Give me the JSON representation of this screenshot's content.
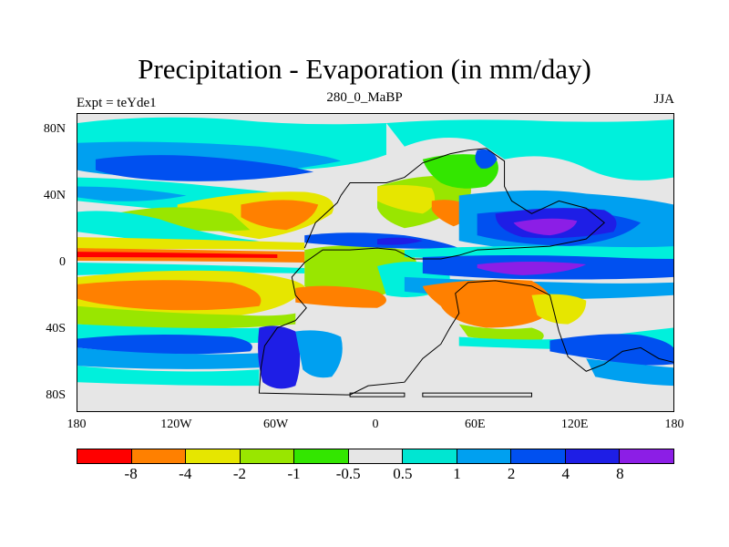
{
  "title": "Precipitation - Evaporation (in mm/day)",
  "left_label": "Expt = teYde1",
  "center_label": "280_0_MaBP",
  "right_label": "JJA",
  "lat_labels": [
    {
      "text": "80N",
      "lat": 80
    },
    {
      "text": "40N",
      "lat": 40
    },
    {
      "text": "0",
      "lat": 0
    },
    {
      "text": "40S",
      "lat": -40
    },
    {
      "text": "80S",
      "lat": -80
    }
  ],
  "lon_labels": [
    {
      "text": "180",
      "lon": -180
    },
    {
      "text": "120W",
      "lon": -120
    },
    {
      "text": "60W",
      "lon": -60
    },
    {
      "text": "0",
      "lon": 0
    },
    {
      "text": "60E",
      "lon": 60
    },
    {
      "text": "120E",
      "lon": 120
    },
    {
      "text": "180",
      "lon": 180
    }
  ],
  "colorbar": {
    "colors": [
      "#ff0000",
      "#ff8000",
      "#e6e600",
      "#99e600",
      "#33e600",
      "#e6e6e6",
      "#00e6d2",
      "#00a0f0",
      "#0050f0",
      "#1e1ee6",
      "#8c1ee6"
    ],
    "labels": [
      "-8",
      "-4",
      "-2",
      "-1",
      "-0.5",
      "0.5",
      "1",
      "2",
      "4",
      "8"
    ]
  },
  "field_colors": {
    "grey": "#e6e6e6",
    "cyan": "#00f0dc",
    "lightblue": "#00a0f0",
    "blue": "#0050f0",
    "darkblue": "#1e1ee6",
    "purple": "#8c1ee6",
    "green": "#33e600",
    "lightgreen": "#99e600",
    "yellow": "#e6e600",
    "orange": "#ff8000"
  }
}
